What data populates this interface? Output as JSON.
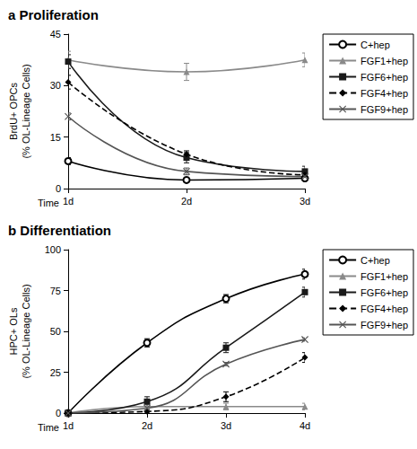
{
  "chart_data": [
    {
      "type": "line",
      "title": "a Proliferation",
      "xlabel": "Time",
      "ylabel": "BrdU+ OPCs\n(% OL-Lineage Cells)",
      "categories": [
        "1d",
        "2d",
        "3d"
      ],
      "ylim": [
        0,
        45
      ],
      "yticks": [
        0,
        15,
        30,
        45
      ],
      "grid": false,
      "legend": "right",
      "series": [
        {
          "name": "C+hep",
          "color": "#000000",
          "marker": "circle-open",
          "line_style": "solid",
          "values": [
            8,
            2.5,
            3
          ],
          "errors": [
            1,
            0.5,
            0.5
          ]
        },
        {
          "name": "FGF1+hep",
          "color": "#8a8a8a",
          "marker": "triangle",
          "line_style": "solid",
          "values": [
            37.5,
            34,
            37.5
          ],
          "errors": [
            2.5,
            2.5,
            2
          ]
        },
        {
          "name": "FGF6+hep",
          "color": "#1a1a1a",
          "marker": "square",
          "line_style": "solid",
          "values": [
            37,
            9,
            5
          ],
          "errors": [
            2,
            1.5,
            1.5
          ]
        },
        {
          "name": "FGF4+hep",
          "color": "#000000",
          "marker": "diamond",
          "line_style": "dashed",
          "values": [
            31,
            10,
            4
          ],
          "errors": [
            2,
            1,
            1
          ]
        },
        {
          "name": "FGF9+hep",
          "color": "#555555",
          "marker": "cross",
          "line_style": "solid",
          "values": [
            21,
            5,
            3.5
          ],
          "errors": [
            1,
            1,
            1
          ]
        }
      ]
    },
    {
      "type": "line",
      "title": "b Differentiation",
      "xlabel": "Time",
      "ylabel": "HPC+ OLs\n(% OL-Lineage Cells)",
      "categories": [
        "1d",
        "2d",
        "3d",
        "4d"
      ],
      "ylim": [
        0,
        100
      ],
      "yticks": [
        0,
        25,
        50,
        75,
        100
      ],
      "grid": false,
      "legend": "right",
      "series": [
        {
          "name": "C+hep",
          "color": "#000000",
          "marker": "circle-open",
          "line_style": "solid",
          "values": [
            0,
            43,
            70,
            85
          ],
          "errors": [
            0,
            2.5,
            2.5,
            3
          ]
        },
        {
          "name": "FGF1+hep",
          "color": "#8a8a8a",
          "marker": "triangle",
          "line_style": "solid",
          "values": [
            0,
            4,
            4,
            4
          ],
          "errors": [
            0,
            1,
            2,
            2
          ]
        },
        {
          "name": "FGF6+hep",
          "color": "#1a1a1a",
          "marker": "square",
          "line_style": "solid",
          "values": [
            0,
            7,
            40,
            74
          ],
          "errors": [
            0,
            3,
            3,
            3
          ]
        },
        {
          "name": "FGF4+hep",
          "color": "#000000",
          "marker": "diamond",
          "line_style": "dashed",
          "values": [
            0,
            1,
            10,
            34
          ],
          "errors": [
            0,
            1,
            3,
            3
          ]
        },
        {
          "name": "FGF9+hep",
          "color": "#555555",
          "marker": "cross",
          "line_style": "solid",
          "values": [
            0,
            3,
            30,
            45
          ],
          "errors": [
            0,
            1,
            1,
            1
          ]
        }
      ]
    }
  ]
}
